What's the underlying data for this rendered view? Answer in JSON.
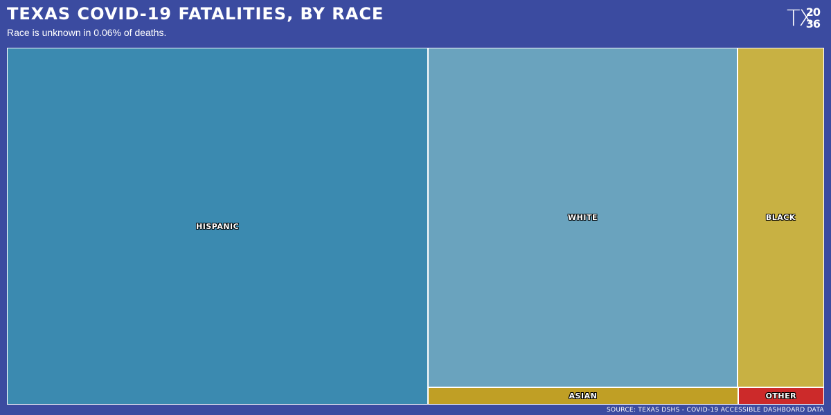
{
  "header": {
    "title": "TEXAS COVID-19 FATALITIES, BY RACE",
    "subtitle": "Race is unknown in 0.06% of deaths.",
    "logo": {
      "left": "TX",
      "top": "20",
      "bottom": "36"
    }
  },
  "source": "SOURCE: TEXAS DSHS - COVID-19 ACCESSIBLE DASHBOARD DATA",
  "chart_data": {
    "type": "treemap",
    "title": "TEXAS COVID-19 FATALITIES, BY RACE",
    "subtitle": "Race is unknown in 0.06% of deaths.",
    "unit": "share of deaths (%, estimated from tile areas)",
    "items": [
      {
        "label": "HISPANIC",
        "value": 51.5,
        "color": "#3b8ab0"
      },
      {
        "label": "WHITE",
        "value": 36.0,
        "color": "#6aa3be"
      },
      {
        "label": "BLACK",
        "value": 10.1,
        "color": "#c8b143"
      },
      {
        "label": "ASIAN",
        "value": 1.8,
        "color": "#c09f25"
      },
      {
        "label": "OTHER",
        "value": 0.5,
        "color": "#cc2a2a"
      }
    ]
  }
}
